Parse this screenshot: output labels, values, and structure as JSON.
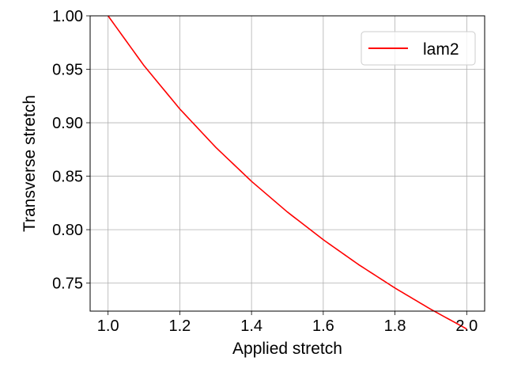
{
  "chart_data": {
    "type": "line",
    "title": "",
    "xlabel": "Applied stretch",
    "ylabel": "Transverse stretch",
    "xlim": [
      0.95,
      2.05
    ],
    "ylim": [
      0.7238,
      1.0
    ],
    "xticks": [
      1.0,
      1.2,
      1.4,
      1.6,
      1.8,
      2.0
    ],
    "xtick_labels": [
      "1.0",
      "1.2",
      "1.4",
      "1.6",
      "1.8",
      "2.0"
    ],
    "yticks": [
      0.75,
      0.8,
      0.85,
      0.9,
      0.95,
      1.0
    ],
    "ytick_labels": [
      "0.75",
      "0.80",
      "0.85",
      "0.90",
      "0.95",
      "1.00"
    ],
    "grid": true,
    "legend_position": "top-right",
    "series": [
      {
        "name": "lam2",
        "color": "#ff0000",
        "x": [
          1.0,
          1.1,
          1.2,
          1.3,
          1.4,
          1.5,
          1.6,
          1.7,
          1.8,
          1.9,
          2.0
        ],
        "y": [
          1.0,
          0.9535,
          0.9129,
          0.8771,
          0.8452,
          0.8165,
          0.7906,
          0.767,
          0.7454,
          0.7255,
          0.7071
        ]
      }
    ]
  }
}
